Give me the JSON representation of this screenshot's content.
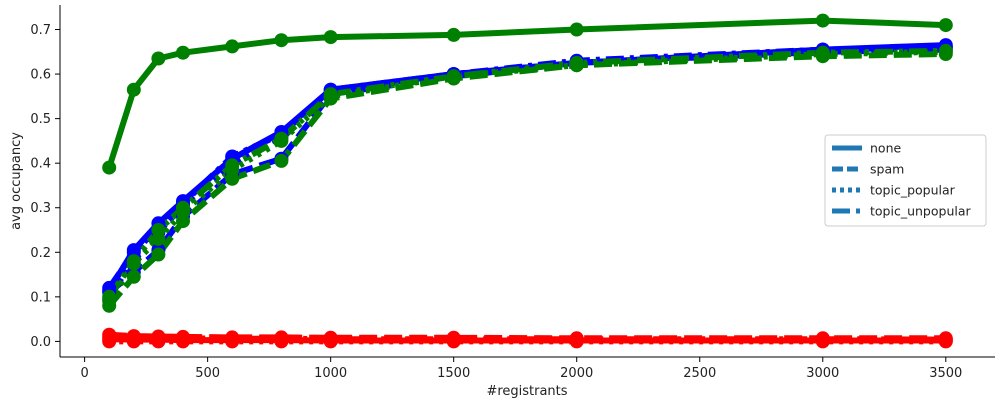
{
  "chart_data": {
    "type": "line",
    "xlabel": "#registrants",
    "ylabel": "avg occupancy",
    "xlim": [
      -100,
      3700
    ],
    "ylim": [
      -0.035,
      0.755
    ],
    "xticks": [
      0,
      500,
      1000,
      1500,
      2000,
      2500,
      3000,
      3500
    ],
    "xtick_labels": [
      "0",
      "500",
      "1000",
      "1500",
      "2000",
      "2500",
      "3000",
      "3500"
    ],
    "yticks": [
      0.0,
      0.1,
      0.2,
      0.3,
      0.4,
      0.5,
      0.6,
      0.7
    ],
    "ytick_labels": [
      "0.0",
      "0.1",
      "0.2",
      "0.3",
      "0.4",
      "0.5",
      "0.6",
      "0.7"
    ],
    "grid": false,
    "legend_position": "center-right",
    "legend": [
      {
        "label": "none",
        "style": "solid",
        "color": "#1f77b4"
      },
      {
        "label": "spam",
        "style": "dashed",
        "color": "#1f77b4"
      },
      {
        "label": "topic_popular",
        "style": "dotted",
        "color": "#1f77b4"
      },
      {
        "label": "topic_unpopular",
        "style": "dashdot",
        "color": "#1f77b4"
      }
    ],
    "series": [
      {
        "group": "red",
        "color": "#ff0000",
        "style": "solid",
        "x": [
          100,
          200,
          300,
          400,
          600,
          800,
          1000,
          1500,
          2000,
          3000,
          3500
        ],
        "y": [
          0.005,
          0.004,
          0.004,
          0.003,
          0.003,
          0.003,
          0.002,
          0.002,
          0.002,
          0.002,
          0.002
        ]
      },
      {
        "group": "red",
        "color": "#ff0000",
        "style": "dashed",
        "x": [
          100,
          200,
          300,
          400,
          600,
          800,
          1000,
          1500,
          2000,
          3000,
          3500
        ],
        "y": [
          0.015,
          0.012,
          0.011,
          0.01,
          0.009,
          0.009,
          0.008,
          0.008,
          0.007,
          0.007,
          0.007
        ]
      },
      {
        "group": "red",
        "color": "#ff0000",
        "style": "dotted",
        "x": [
          100,
          200,
          300,
          400,
          600,
          800,
          1000,
          1500,
          2000,
          3000,
          3500
        ],
        "y": [
          0.0,
          0.0,
          0.0,
          0.0,
          0.0,
          0.0,
          0.0,
          0.0,
          0.0,
          0.0,
          0.0
        ]
      },
      {
        "group": "red",
        "color": "#ff0000",
        "style": "dashdot",
        "x": [
          100,
          200,
          300,
          400,
          600,
          800,
          1000,
          1500,
          2000,
          3000,
          3500
        ],
        "y": [
          0.01,
          0.009,
          0.008,
          0.007,
          0.006,
          0.006,
          0.005,
          0.005,
          0.005,
          0.005,
          0.004
        ]
      },
      {
        "group": "blue",
        "color": "#0000ff",
        "style": "solid",
        "x": [
          100,
          200,
          300,
          400,
          600,
          800,
          1000,
          1500,
          2000,
          3000,
          3500
        ],
        "y": [
          0.115,
          0.205,
          0.265,
          0.315,
          0.41,
          0.47,
          0.565,
          0.6,
          0.625,
          0.655,
          0.665
        ]
      },
      {
        "group": "blue",
        "color": "#0000ff",
        "style": "dashed",
        "x": [
          100,
          200,
          300,
          400,
          600,
          800,
          1000,
          1500,
          2000,
          3000,
          3500
        ],
        "y": [
          0.11,
          0.155,
          0.205,
          0.28,
          0.375,
          0.41,
          0.555,
          0.595,
          0.625,
          0.65,
          0.655
        ]
      },
      {
        "group": "blue",
        "color": "#0000ff",
        "style": "dotted",
        "x": [
          100,
          200,
          300,
          400,
          600,
          800,
          1000,
          1500,
          2000,
          3000,
          3500
        ],
        "y": [
          0.095,
          0.19,
          0.245,
          0.305,
          0.4,
          0.46,
          0.56,
          0.6,
          0.625,
          0.65,
          0.66
        ]
      },
      {
        "group": "blue",
        "color": "#0000ff",
        "style": "dashdot",
        "x": [
          100,
          200,
          300,
          400,
          600,
          800,
          1000,
          1500,
          2000,
          3000,
          3500
        ],
        "y": [
          0.12,
          0.2,
          0.255,
          0.31,
          0.415,
          0.465,
          0.565,
          0.6,
          0.63,
          0.655,
          0.66
        ]
      },
      {
        "group": "green",
        "color": "#008000",
        "style": "solid",
        "x": [
          100,
          200,
          300,
          400,
          600,
          800,
          1000,
          1500,
          2000,
          3000,
          3500
        ],
        "y": [
          0.39,
          0.565,
          0.635,
          0.648,
          0.662,
          0.676,
          0.683,
          0.688,
          0.7,
          0.72,
          0.71
        ]
      },
      {
        "group": "green",
        "color": "#008000",
        "style": "dashed",
        "x": [
          100,
          200,
          300,
          400,
          600,
          800,
          1000,
          1500,
          2000,
          3000,
          3500
        ],
        "y": [
          0.08,
          0.145,
          0.195,
          0.27,
          0.365,
          0.405,
          0.545,
          0.59,
          0.62,
          0.64,
          0.645
        ]
      },
      {
        "group": "green",
        "color": "#008000",
        "style": "dotted",
        "x": [
          100,
          200,
          300,
          400,
          600,
          800,
          1000,
          1500,
          2000,
          3000,
          3500
        ],
        "y": [
          0.09,
          0.175,
          0.23,
          0.29,
          0.385,
          0.45,
          0.55,
          0.595,
          0.62,
          0.645,
          0.65
        ]
      },
      {
        "group": "green",
        "color": "#008000",
        "style": "dashdot",
        "x": [
          100,
          200,
          300,
          400,
          600,
          800,
          1000,
          1500,
          2000,
          3000,
          3500
        ],
        "y": [
          0.1,
          0.18,
          0.25,
          0.3,
          0.395,
          0.455,
          0.555,
          0.595,
          0.625,
          0.648,
          0.652
        ]
      }
    ]
  }
}
